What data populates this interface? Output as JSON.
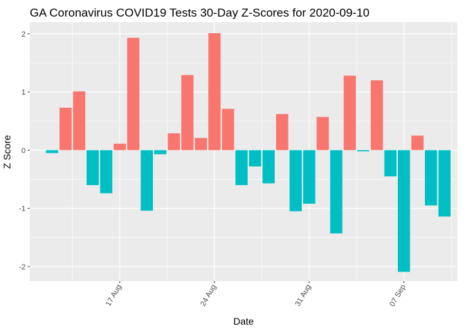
{
  "chart_data": {
    "type": "bar",
    "title": "GA Coronavirus COVID19 Tests 30-Day Z-Scores for 2020-09-10",
    "xlabel": "Date",
    "ylabel": "Z Score",
    "ylim": [
      -2.25,
      2.2
    ],
    "yticks": [
      -2,
      -1,
      0,
      1,
      2
    ],
    "ytick_labels": [
      "-2",
      "-1",
      "0",
      "1",
      "2"
    ],
    "xticks": [
      "2020-08-17",
      "2020-08-24",
      "2020-08-31",
      "2020-09-07"
    ],
    "xtick_labels": [
      "17 Aug",
      "24 Aug",
      "31 Aug",
      "07 Sep"
    ],
    "x_rotation": -60,
    "grid": true,
    "legend": "none",
    "colors": {
      "positive": "#F8766D",
      "negative": "#00BFC4",
      "panel": "#EBEBEB",
      "grid": "#FFFFFF"
    },
    "dates": [
      "2020-08-12",
      "2020-08-13",
      "2020-08-14",
      "2020-08-15",
      "2020-08-16",
      "2020-08-17",
      "2020-08-18",
      "2020-08-19",
      "2020-08-20",
      "2020-08-21",
      "2020-08-22",
      "2020-08-23",
      "2020-08-24",
      "2020-08-25",
      "2020-08-26",
      "2020-08-27",
      "2020-08-28",
      "2020-08-29",
      "2020-08-30",
      "2020-08-31",
      "2020-09-01",
      "2020-09-02",
      "2020-09-03",
      "2020-09-04",
      "2020-09-05",
      "2020-09-06",
      "2020-09-07",
      "2020-09-08",
      "2020-09-09",
      "2020-09-10"
    ],
    "values": [
      -0.05,
      0.73,
      1.01,
      -0.6,
      -0.74,
      0.11,
      1.93,
      -1.04,
      -0.07,
      0.29,
      1.29,
      0.21,
      2.01,
      0.71,
      -0.6,
      -0.28,
      -0.57,
      0.62,
      -1.05,
      -0.92,
      0.57,
      -1.43,
      1.28,
      -0.02,
      1.2,
      -0.45,
      -2.09,
      0.25,
      -0.95,
      -1.14
    ]
  }
}
